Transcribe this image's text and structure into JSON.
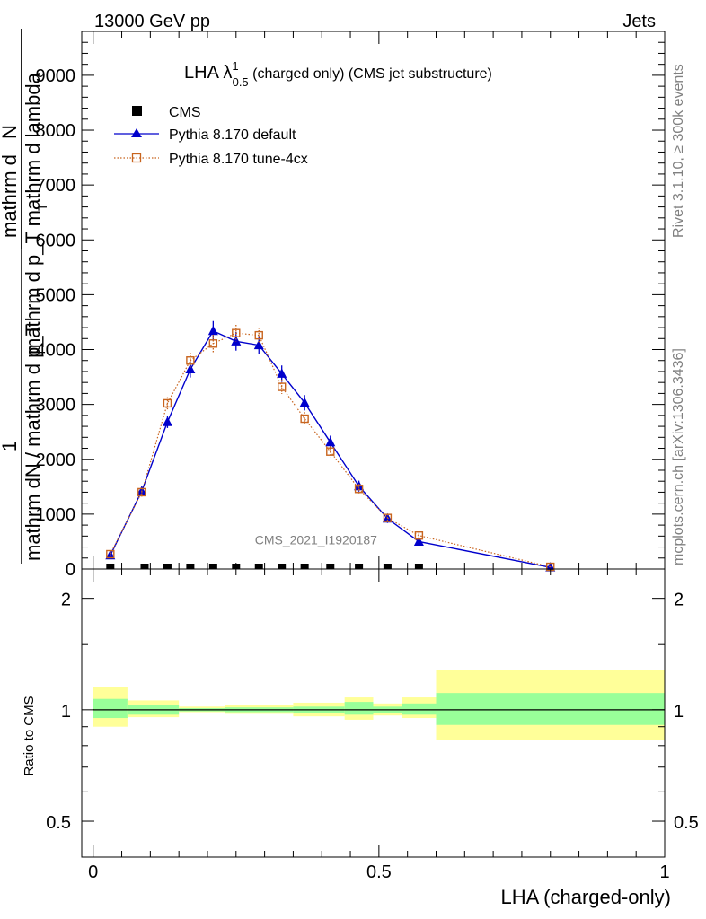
{
  "header": {
    "energy_label": "13000 GeV pp",
    "category_label": "Jets"
  },
  "side_labels": {
    "rivet": "Rivet 3.1.10, ≥ 300k events",
    "mcplots": "mcplots.cern.ch [arXiv:1306.3436]"
  },
  "chart_data": {
    "type": "line",
    "title": {
      "main": "LHA λ",
      "sup": "1",
      "sub": "0.5",
      "rest": " (charged only) (CMS jet substructure)"
    },
    "watermark": "CMS_2021_I1920187",
    "ylabel_top": {
      "numerator": "1",
      "denominator": "mathrm dN / mathrm d p_T",
      "overlay_numerator": "mathrm d",
      "overlay_denominator": "mathrm d p_T mathrm d lambda",
      "overlay_N": "N",
      "overlay_subscript": "T"
    },
    "ylabel_ratio": "Ratio to CMS",
    "xlabel": "LHA (charged-only)",
    "xlim": [
      -0.02,
      1.0
    ],
    "ylim_top": [
      0,
      9800
    ],
    "ylim_ratio": [
      0.4,
      2.4
    ],
    "x_ticks": [
      "0",
      "0.5",
      "1"
    ],
    "x_tick_values": [
      0,
      0.5,
      1.0
    ],
    "y_ticks_top": [
      "0",
      "1000",
      "2000",
      "3000",
      "4000",
      "5000",
      "6000",
      "7000",
      "8000",
      "9000"
    ],
    "y_tick_values_top": [
      0,
      1000,
      2000,
      3000,
      4000,
      5000,
      6000,
      7000,
      8000,
      9000
    ],
    "y_ticks_ratio": [
      "0.5",
      "1",
      "2"
    ],
    "y_tick_values_ratio": [
      0.5,
      1,
      2
    ],
    "legend": {
      "position": "top-left",
      "entries": [
        "CMS",
        "Pythia 8.170 default",
        "Pythia 8.170 tune-4cx"
      ]
    },
    "series": [
      {
        "name": "CMS",
        "style": "marker",
        "color": "#000000",
        "x": [
          0.03,
          0.09,
          0.13,
          0.17,
          0.21,
          0.25,
          0.29,
          0.33,
          0.37,
          0.415,
          0.465,
          0.515,
          0.57
        ],
        "values": [
          0,
          0,
          0,
          0,
          0,
          0,
          0,
          0,
          0,
          0,
          0,
          0,
          0
        ]
      },
      {
        "name": "Pythia 8.170 default",
        "style": "line-triangle",
        "color": "#0000cc",
        "x": [
          0.03,
          0.085,
          0.13,
          0.17,
          0.21,
          0.25,
          0.29,
          0.33,
          0.37,
          0.415,
          0.465,
          0.515,
          0.57,
          0.8
        ],
        "values": [
          250,
          1420,
          2680,
          3640,
          4340,
          4150,
          4080,
          3560,
          3030,
          2310,
          1510,
          920,
          500,
          30
        ],
        "errors": [
          40,
          80,
          110,
          150,
          180,
          170,
          160,
          150,
          140,
          120,
          100,
          80,
          50,
          10
        ]
      },
      {
        "name": "Pythia 8.170 tune-4cx",
        "style": "dotted-square",
        "color": "#c8641e",
        "x": [
          0.03,
          0.085,
          0.13,
          0.17,
          0.21,
          0.25,
          0.29,
          0.33,
          0.37,
          0.415,
          0.465,
          0.515,
          0.57,
          0.8
        ],
        "values": [
          270,
          1400,
          3020,
          3800,
          4110,
          4300,
          4260,
          3320,
          2740,
          2140,
          1460,
          930,
          610,
          40
        ],
        "errors": [
          40,
          80,
          110,
          140,
          160,
          150,
          140,
          130,
          120,
          100,
          90,
          70,
          50,
          10
        ]
      }
    ],
    "ratio_bands": [
      {
        "x0": 0.0,
        "x1": 0.06,
        "inner": [
          0.95,
          1.07
        ],
        "outer": [
          0.9,
          1.15
        ]
      },
      {
        "x0": 0.06,
        "x1": 0.15,
        "inner": [
          0.97,
          1.03
        ],
        "outer": [
          0.955,
          1.06
        ]
      },
      {
        "x0": 0.15,
        "x1": 0.23,
        "inner": [
          0.99,
          1.01
        ],
        "outer": [
          0.985,
          1.02
        ]
      },
      {
        "x0": 0.23,
        "x1": 0.35,
        "inner": [
          0.985,
          1.015
        ],
        "outer": [
          0.975,
          1.03
        ]
      },
      {
        "x0": 0.35,
        "x1": 0.44,
        "inner": [
          0.98,
          1.02
        ],
        "outer": [
          0.96,
          1.045
        ]
      },
      {
        "x0": 0.44,
        "x1": 0.49,
        "inner": [
          0.97,
          1.05
        ],
        "outer": [
          0.94,
          1.08
        ]
      },
      {
        "x0": 0.49,
        "x1": 0.54,
        "inner": [
          0.98,
          1.02
        ],
        "outer": [
          0.965,
          1.04
        ]
      },
      {
        "x0": 0.54,
        "x1": 0.6,
        "inner": [
          0.97,
          1.04
        ],
        "outer": [
          0.95,
          1.08
        ]
      },
      {
        "x0": 0.6,
        "x1": 1.0,
        "inner": [
          0.91,
          1.11
        ],
        "outer": [
          0.83,
          1.28
        ]
      }
    ],
    "colors": {
      "inner_band": "#99ff99",
      "outer_band": "#ffff99",
      "reference_line": "#000000"
    }
  }
}
